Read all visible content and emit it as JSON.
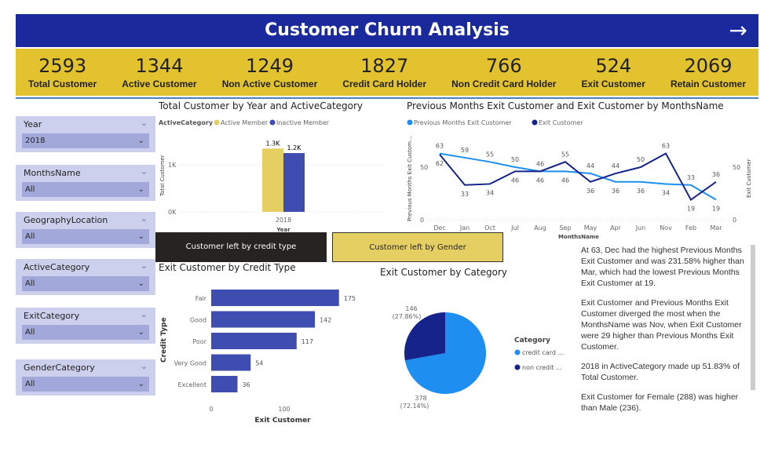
{
  "header": {
    "title": "Customer Churn Analysis",
    "next_icon": "arrow-right-icon"
  },
  "kpis": [
    {
      "value": "2593",
      "label": "Total Customer"
    },
    {
      "value": "1344",
      "label": "Active Customer"
    },
    {
      "value": "1249",
      "label": "Non Active Customer"
    },
    {
      "value": "1827",
      "label": "Credit Card Holder"
    },
    {
      "value": "766",
      "label": "Non Credit Card Holder"
    },
    {
      "value": "524",
      "label": "Exit Customer"
    },
    {
      "value": "2069",
      "label": "Retain Customer"
    }
  ],
  "slicers": [
    {
      "title": "Year",
      "value": "2018"
    },
    {
      "title": "MonthsName",
      "value": "All"
    },
    {
      "title": "GeographyLocation",
      "value": "All"
    },
    {
      "title": "ActiveCategory",
      "value": "All"
    },
    {
      "title": "ExitCategory",
      "value": "All"
    },
    {
      "title": "GenderCategory",
      "value": "All"
    }
  ],
  "buttons": {
    "credit": "Customer left by credit type",
    "gender": "Customer left by Gender"
  },
  "colors": {
    "header": "#1a2a9c",
    "kpi": "#e3c22f",
    "active": "#e6cf62",
    "inactive": "#3f4db0",
    "prev": "#1e8ff0",
    "exit": "#15238a"
  },
  "chart_data": [
    {
      "type": "bar",
      "title": "Total Customer by Year and ActiveCategory",
      "legend_title": "ActiveCategory",
      "xlabel": "Year",
      "ylabel": "Total Customer",
      "categories": [
        "2018"
      ],
      "yticks": [
        "0K",
        "1K"
      ],
      "ylim": [
        0,
        1400
      ],
      "series": [
        {
          "name": "Active Member",
          "values": [
            1344
          ],
          "label": "1.3K"
        },
        {
          "name": "Inactive Member",
          "values": [
            1249
          ],
          "label": "1.2K"
        }
      ]
    },
    {
      "type": "line",
      "title": "Previous Months Exit Customer and Exit Customer by MonthsName",
      "xlabel": "MonthsName",
      "ylabel": "Previous Months Exit Custom...",
      "ylabel_right": "Exit Customer",
      "yticks": [
        "0",
        "50"
      ],
      "ylim": [
        0,
        70
      ],
      "categories": [
        "Dec",
        "Jan",
        "Oct",
        "Jul",
        "Aug",
        "Sep",
        "May",
        "Apr",
        "Jun",
        "Nov",
        "Feb",
        "Mar"
      ],
      "series": [
        {
          "name": "Previous Months Exit Customer",
          "values": [
            63,
            59,
            55,
            50,
            46,
            46,
            44,
            36,
            36,
            34,
            33,
            19
          ]
        },
        {
          "name": "Exit Customer",
          "values": [
            62,
            33,
            34,
            46,
            46,
            55,
            36,
            44,
            50,
            63,
            19,
            36
          ]
        }
      ]
    },
    {
      "type": "bar",
      "orientation": "horizontal",
      "title": "Exit Customer by Credit Type",
      "xlabel": "Exit Customer",
      "ylabel": "Credit Type",
      "xticks": [
        "0",
        "100"
      ],
      "categories": [
        "Fair",
        "Good",
        "Poor",
        "Very Good",
        "Excellent"
      ],
      "values": [
        175,
        142,
        117,
        54,
        36
      ]
    },
    {
      "type": "pie",
      "title": "Exit Customer by Category",
      "legend_title": "Category",
      "slices": [
        {
          "name": "credit card ...",
          "value": 378,
          "label": "378",
          "pct": "(72.14%)"
        },
        {
          "name": "non credit ...",
          "value": 146,
          "label": "146",
          "pct": "(27.86%)"
        }
      ]
    }
  ],
  "narrative": [
    "At 63, Dec had the highest Previous Months Exit Customer and was 231.58% higher than Mar, which had the lowest Previous Months Exit Customer at 19.",
    "Exit Customer and Previous Months Exit Customer diverged the most when the MonthsName was Nov, when Exit Customer were 29 higher than Previous Months Exit Customer.",
    "2018 in ActiveCategory  made up 51.83% of Total Customer.",
    "Exit Customer for Female (288) was higher than Male (236)."
  ]
}
